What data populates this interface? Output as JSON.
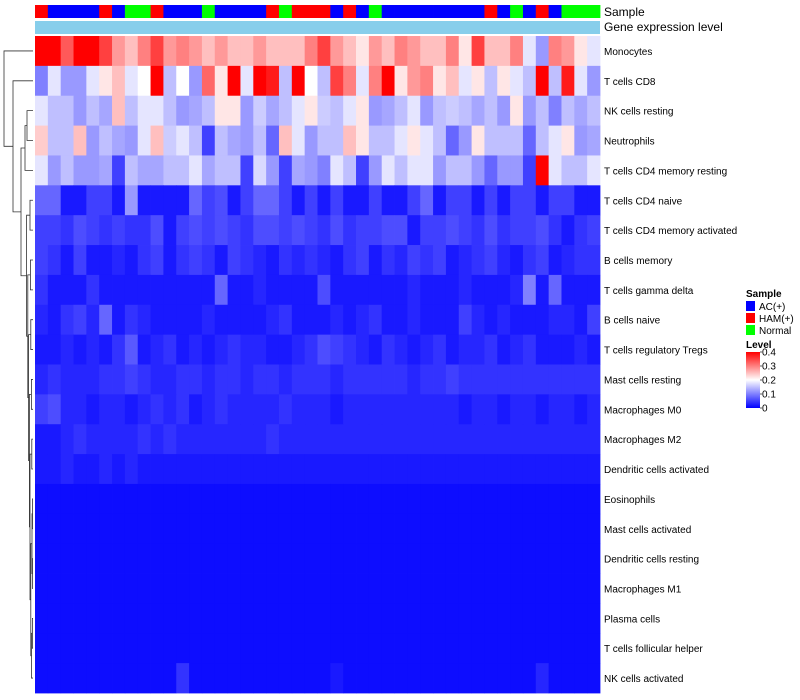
{
  "chart_data": {
    "type": "heatmap",
    "annotation_labels": {
      "sample": "Sample",
      "expression": "Gene expression level"
    },
    "rows": [
      "Monocytes",
      "T cells CD8",
      "NK cells resting",
      "Neutrophils",
      "T cells CD4 memory resting",
      "T cells CD4 naive",
      "T cells CD4 memory activated",
      "B cells memory",
      "T cells gamma delta",
      "B cells naive",
      "T cells regulatory  Tregs",
      "Mast cells resting",
      "Macrophages M0",
      "Macrophages M2",
      "Dendritic cells activated",
      "Eosinophils",
      "Mast cells activated",
      "Dendritic cells resting",
      "Macrophages M1",
      "Plasma cells",
      "T cells follicular helper",
      "NK cells activated"
    ],
    "sample_groups": [
      "HAM(+)",
      "AC(+)",
      "AC(+)",
      "AC(+)",
      "AC(+)",
      "HAM(+)",
      "AC(+)",
      "Normal",
      "Normal",
      "HAM(+)",
      "AC(+)",
      "AC(+)",
      "AC(+)",
      "Normal",
      "AC(+)",
      "AC(+)",
      "AC(+)",
      "AC(+)",
      "HAM(+)",
      "Normal",
      "HAM(+)",
      "HAM(+)",
      "HAM(+)",
      "AC(+)",
      "HAM(+)",
      "AC(+)",
      "Normal",
      "AC(+)",
      "AC(+)",
      "AC(+)",
      "AC(+)",
      "AC(+)",
      "AC(+)",
      "AC(+)",
      "AC(+)",
      "HAM(+)",
      "AC(+)",
      "Normal",
      "AC(+)",
      "HAM(+)",
      "AC(+)",
      "Normal",
      "Normal",
      "Normal"
    ],
    "values": [
      [
        0.4,
        0.4,
        0.33,
        0.4,
        0.4,
        0.35,
        0.28,
        0.25,
        0.3,
        0.35,
        0.28,
        0.3,
        0.28,
        0.25,
        0.28,
        0.25,
        0.25,
        0.28,
        0.25,
        0.25,
        0.25,
        0.3,
        0.35,
        0.28,
        0.25,
        0.22,
        0.28,
        0.25,
        0.3,
        0.28,
        0.25,
        0.25,
        0.3,
        0.22,
        0.35,
        0.25,
        0.25,
        0.3,
        0.18,
        0.12,
        0.3,
        0.28,
        0.22,
        0.18
      ],
      [
        0.1,
        0.18,
        0.12,
        0.12,
        0.18,
        0.22,
        0.25,
        0.18,
        0.2,
        0.4,
        0.15,
        0.2,
        0.12,
        0.32,
        0.22,
        0.4,
        0.18,
        0.42,
        0.38,
        0.15,
        0.4,
        0.2,
        0.15,
        0.35,
        0.3,
        0.18,
        0.3,
        0.4,
        0.22,
        0.28,
        0.3,
        0.22,
        0.25,
        0.18,
        0.22,
        0.15,
        0.22,
        0.18,
        0.15,
        0.4,
        0.15,
        0.38,
        0.18,
        0.12
      ],
      [
        0.18,
        0.15,
        0.15,
        0.12,
        0.15,
        0.13,
        0.25,
        0.15,
        0.18,
        0.18,
        0.15,
        0.12,
        0.13,
        0.15,
        0.22,
        0.22,
        0.12,
        0.16,
        0.13,
        0.15,
        0.18,
        0.22,
        0.16,
        0.15,
        0.18,
        0.22,
        0.12,
        0.13,
        0.15,
        0.18,
        0.12,
        0.15,
        0.16,
        0.15,
        0.13,
        0.15,
        0.12,
        0.22,
        0.12,
        0.15,
        0.1,
        0.15,
        0.13,
        0.15
      ],
      [
        0.24,
        0.15,
        0.15,
        0.25,
        0.12,
        0.15,
        0.13,
        0.12,
        0.18,
        0.25,
        0.16,
        0.18,
        0.15,
        0.05,
        0.15,
        0.13,
        0.12,
        0.15,
        0.08,
        0.25,
        0.18,
        0.12,
        0.15,
        0.15,
        0.25,
        0.22,
        0.15,
        0.15,
        0.18,
        0.22,
        0.18,
        0.15,
        0.08,
        0.12,
        0.22,
        0.15,
        0.15,
        0.15,
        0.08,
        0.15,
        0.18,
        0.22,
        0.12,
        0.13
      ],
      [
        0.18,
        0.12,
        0.15,
        0.12,
        0.12,
        0.13,
        0.05,
        0.15,
        0.13,
        0.13,
        0.15,
        0.15,
        0.18,
        0.13,
        0.15,
        0.15,
        0.05,
        0.17,
        0.12,
        0.05,
        0.13,
        0.12,
        0.1,
        0.18,
        0.15,
        0.05,
        0.12,
        0.18,
        0.15,
        0.18,
        0.18,
        0.12,
        0.15,
        0.15,
        0.12,
        0.08,
        0.12,
        0.12,
        0.05,
        0.4,
        0.18,
        0.15,
        0.15,
        0.18
      ],
      [
        0.08,
        0.08,
        0.02,
        0.02,
        0.05,
        0.05,
        0.02,
        0.12,
        0.02,
        0.02,
        0.02,
        0.02,
        0.08,
        0.05,
        0.06,
        0.02,
        0.05,
        0.08,
        0.08,
        0.05,
        0.02,
        0.05,
        0.02,
        0.05,
        0.02,
        0.02,
        0.05,
        0.02,
        0.02,
        0.05,
        0.08,
        0.02,
        0.05,
        0.05,
        0.02,
        0.05,
        0.02,
        0.05,
        0.05,
        0.02,
        0.05,
        0.05,
        0.02,
        0.02
      ],
      [
        0.05,
        0.05,
        0.04,
        0.06,
        0.05,
        0.04,
        0.05,
        0.04,
        0.04,
        0.06,
        0.02,
        0.05,
        0.06,
        0.05,
        0.06,
        0.05,
        0.04,
        0.06,
        0.06,
        0.05,
        0.06,
        0.05,
        0.04,
        0.06,
        0.04,
        0.05,
        0.05,
        0.06,
        0.06,
        0.02,
        0.05,
        0.05,
        0.06,
        0.05,
        0.04,
        0.06,
        0.04,
        0.05,
        0.05,
        0.06,
        0.04,
        0.02,
        0.04,
        0.05
      ],
      [
        0.05,
        0.04,
        0.02,
        0.05,
        0.02,
        0.02,
        0.03,
        0.02,
        0.04,
        0.05,
        0.02,
        0.04,
        0.05,
        0.04,
        0.02,
        0.05,
        0.04,
        0.03,
        0.02,
        0.04,
        0.03,
        0.04,
        0.03,
        0.02,
        0.04,
        0.05,
        0.02,
        0.04,
        0.03,
        0.05,
        0.04,
        0.05,
        0.02,
        0.03,
        0.04,
        0.05,
        0.03,
        0.02,
        0.04,
        0.05,
        0.02,
        0.03,
        0.04,
        0.04
      ],
      [
        0.04,
        0.02,
        0.02,
        0.02,
        0.04,
        0.02,
        0.02,
        0.02,
        0.02,
        0.02,
        0.02,
        0.02,
        0.02,
        0.02,
        0.08,
        0.02,
        0.02,
        0.03,
        0.02,
        0.02,
        0.02,
        0.02,
        0.06,
        0.02,
        0.02,
        0.02,
        0.02,
        0.02,
        0.02,
        0.03,
        0.02,
        0.02,
        0.02,
        0.03,
        0.02,
        0.02,
        0.02,
        0.03,
        0.1,
        0.02,
        0.08,
        0.02,
        0.02,
        0.02
      ],
      [
        0.03,
        0.02,
        0.04,
        0.05,
        0.03,
        0.08,
        0.02,
        0.04,
        0.03,
        0.02,
        0.02,
        0.02,
        0.02,
        0.03,
        0.02,
        0.02,
        0.02,
        0.02,
        0.03,
        0.04,
        0.02,
        0.02,
        0.02,
        0.03,
        0.02,
        0.03,
        0.04,
        0.02,
        0.02,
        0.03,
        0.02,
        0.02,
        0.02,
        0.05,
        0.03,
        0.02,
        0.03,
        0.02,
        0.02,
        0.02,
        0.03,
        0.03,
        0.02,
        0.05
      ],
      [
        0.02,
        0.02,
        0.03,
        0.02,
        0.03,
        0.02,
        0.04,
        0.07,
        0.02,
        0.03,
        0.04,
        0.02,
        0.03,
        0.02,
        0.03,
        0.04,
        0.03,
        0.03,
        0.02,
        0.02,
        0.03,
        0.04,
        0.06,
        0.05,
        0.04,
        0.03,
        0.02,
        0.04,
        0.03,
        0.02,
        0.03,
        0.04,
        0.02,
        0.03,
        0.03,
        0.04,
        0.02,
        0.03,
        0.04,
        0.02,
        0.02,
        0.02,
        0.03,
        0.02
      ],
      [
        0.03,
        0.04,
        0.03,
        0.03,
        0.03,
        0.04,
        0.04,
        0.05,
        0.04,
        0.03,
        0.03,
        0.04,
        0.04,
        0.03,
        0.04,
        0.04,
        0.03,
        0.04,
        0.04,
        0.03,
        0.04,
        0.04,
        0.04,
        0.03,
        0.04,
        0.04,
        0.04,
        0.04,
        0.04,
        0.03,
        0.04,
        0.04,
        0.05,
        0.04,
        0.04,
        0.04,
        0.04,
        0.04,
        0.04,
        0.04,
        0.04,
        0.04,
        0.04,
        0.04
      ],
      [
        0.05,
        0.06,
        0.03,
        0.03,
        0.02,
        0.03,
        0.03,
        0.02,
        0.03,
        0.04,
        0.03,
        0.04,
        0.02,
        0.03,
        0.04,
        0.03,
        0.03,
        0.03,
        0.03,
        0.04,
        0.03,
        0.03,
        0.03,
        0.02,
        0.03,
        0.03,
        0.03,
        0.03,
        0.03,
        0.03,
        0.03,
        0.03,
        0.03,
        0.02,
        0.03,
        0.03,
        0.02,
        0.03,
        0.03,
        0.02,
        0.03,
        0.03,
        0.02,
        0.03
      ],
      [
        0.02,
        0.02,
        0.03,
        0.04,
        0.03,
        0.03,
        0.03,
        0.03,
        0.04,
        0.03,
        0.04,
        0.03,
        0.03,
        0.03,
        0.03,
        0.03,
        0.03,
        0.03,
        0.04,
        0.03,
        0.03,
        0.03,
        0.03,
        0.03,
        0.03,
        0.03,
        0.03,
        0.03,
        0.03,
        0.03,
        0.03,
        0.03,
        0.03,
        0.03,
        0.03,
        0.03,
        0.03,
        0.03,
        0.03,
        0.03,
        0.03,
        0.03,
        0.03,
        0.03
      ],
      [
        0.02,
        0.02,
        0.03,
        0.02,
        0.02,
        0.03,
        0.02,
        0.03,
        0.02,
        0.02,
        0.02,
        0.02,
        0.02,
        0.02,
        0.02,
        0.02,
        0.02,
        0.02,
        0.02,
        0.02,
        0.02,
        0.02,
        0.02,
        0.02,
        0.02,
        0.02,
        0.02,
        0.02,
        0.02,
        0.02,
        0.02,
        0.02,
        0.02,
        0.02,
        0.02,
        0.02,
        0.02,
        0.02,
        0.02,
        0.02,
        0.02,
        0.02,
        0.02,
        0.02
      ],
      [
        0.01,
        0.01,
        0.01,
        0.01,
        0.01,
        0.01,
        0.01,
        0.01,
        0.01,
        0.01,
        0.01,
        0.01,
        0.01,
        0.01,
        0.01,
        0.01,
        0.01,
        0.01,
        0.01,
        0.01,
        0.01,
        0.01,
        0.01,
        0.01,
        0.01,
        0.01,
        0.01,
        0.01,
        0.01,
        0.01,
        0.01,
        0.01,
        0.01,
        0.01,
        0.01,
        0.01,
        0.01,
        0.01,
        0.01,
        0.01,
        0.01,
        0.01,
        0.01,
        0.01
      ],
      [
        0.01,
        0.01,
        0.01,
        0.01,
        0.01,
        0.01,
        0.01,
        0.01,
        0.01,
        0.01,
        0.01,
        0.01,
        0.01,
        0.01,
        0.01,
        0.01,
        0.01,
        0.01,
        0.01,
        0.01,
        0.01,
        0.01,
        0.01,
        0.01,
        0.01,
        0.01,
        0.01,
        0.01,
        0.01,
        0.01,
        0.01,
        0.01,
        0.01,
        0.01,
        0.01,
        0.01,
        0.01,
        0.01,
        0.01,
        0.01,
        0.01,
        0.01,
        0.01,
        0.01
      ],
      [
        0.01,
        0.01,
        0.01,
        0.01,
        0.01,
        0.01,
        0.01,
        0.01,
        0.01,
        0.01,
        0.01,
        0.01,
        0.01,
        0.01,
        0.01,
        0.01,
        0.01,
        0.01,
        0.01,
        0.01,
        0.01,
        0.01,
        0.01,
        0.01,
        0.01,
        0.01,
        0.01,
        0.01,
        0.01,
        0.01,
        0.01,
        0.01,
        0.01,
        0.01,
        0.01,
        0.01,
        0.01,
        0.01,
        0.01,
        0.01,
        0.01,
        0.01,
        0.01,
        0.01
      ],
      [
        0.01,
        0.01,
        0.01,
        0.01,
        0.01,
        0.01,
        0.01,
        0.01,
        0.01,
        0.01,
        0.01,
        0.01,
        0.01,
        0.01,
        0.01,
        0.01,
        0.01,
        0.01,
        0.01,
        0.01,
        0.01,
        0.01,
        0.01,
        0.01,
        0.01,
        0.01,
        0.01,
        0.01,
        0.01,
        0.01,
        0.01,
        0.01,
        0.01,
        0.01,
        0.01,
        0.01,
        0.01,
        0.01,
        0.01,
        0.01,
        0.01,
        0.01,
        0.01,
        0.01
      ],
      [
        0.01,
        0.01,
        0.01,
        0.01,
        0.01,
        0.01,
        0.01,
        0.01,
        0.01,
        0.01,
        0.01,
        0.01,
        0.01,
        0.01,
        0.01,
        0.01,
        0.01,
        0.01,
        0.01,
        0.01,
        0.01,
        0.01,
        0.01,
        0.01,
        0.01,
        0.01,
        0.01,
        0.01,
        0.01,
        0.01,
        0.01,
        0.01,
        0.01,
        0.01,
        0.01,
        0.01,
        0.01,
        0.01,
        0.01,
        0.01,
        0.01,
        0.01,
        0.01,
        0.01
      ],
      [
        0.01,
        0.01,
        0.01,
        0.01,
        0.01,
        0.01,
        0.01,
        0.01,
        0.01,
        0.01,
        0.01,
        0.01,
        0.01,
        0.01,
        0.01,
        0.01,
        0.01,
        0.01,
        0.01,
        0.01,
        0.01,
        0.01,
        0.01,
        0.01,
        0.01,
        0.01,
        0.01,
        0.01,
        0.01,
        0.01,
        0.01,
        0.01,
        0.01,
        0.01,
        0.01,
        0.01,
        0.01,
        0.01,
        0.01,
        0.01,
        0.01,
        0.01,
        0.01,
        0.01
      ],
      [
        0.01,
        0.01,
        0.01,
        0.01,
        0.01,
        0.01,
        0.01,
        0.01,
        0.01,
        0.01,
        0.01,
        0.04,
        0.01,
        0.01,
        0.01,
        0.01,
        0.01,
        0.01,
        0.01,
        0.01,
        0.01,
        0.01,
        0.01,
        0.02,
        0.01,
        0.01,
        0.01,
        0.01,
        0.01,
        0.01,
        0.01,
        0.01,
        0.01,
        0.01,
        0.01,
        0.01,
        0.01,
        0.01,
        0.01,
        0.03,
        0.01,
        0.01,
        0.01,
        0.01
      ]
    ],
    "color_scale": {
      "min": 0,
      "mid": 0.2,
      "max": 0.4,
      "low": "#0000ff",
      "midcolor": "#ffffff",
      "high": "#ff0000"
    },
    "legend": {
      "sample_title": "Sample",
      "groups": [
        {
          "name": "AC(+)",
          "color": "#0000ff"
        },
        {
          "name": "HAM(+)",
          "color": "#ff0000"
        },
        {
          "name": "Normal",
          "color": "#00ff00"
        }
      ],
      "level_title": "Level",
      "level_ticks": [
        "0.4",
        "0.3",
        "0.2",
        "0.1",
        "0"
      ]
    },
    "expression_color": "#87ceeb",
    "dendrogram": "left, hierarchical clustering of rows"
  }
}
